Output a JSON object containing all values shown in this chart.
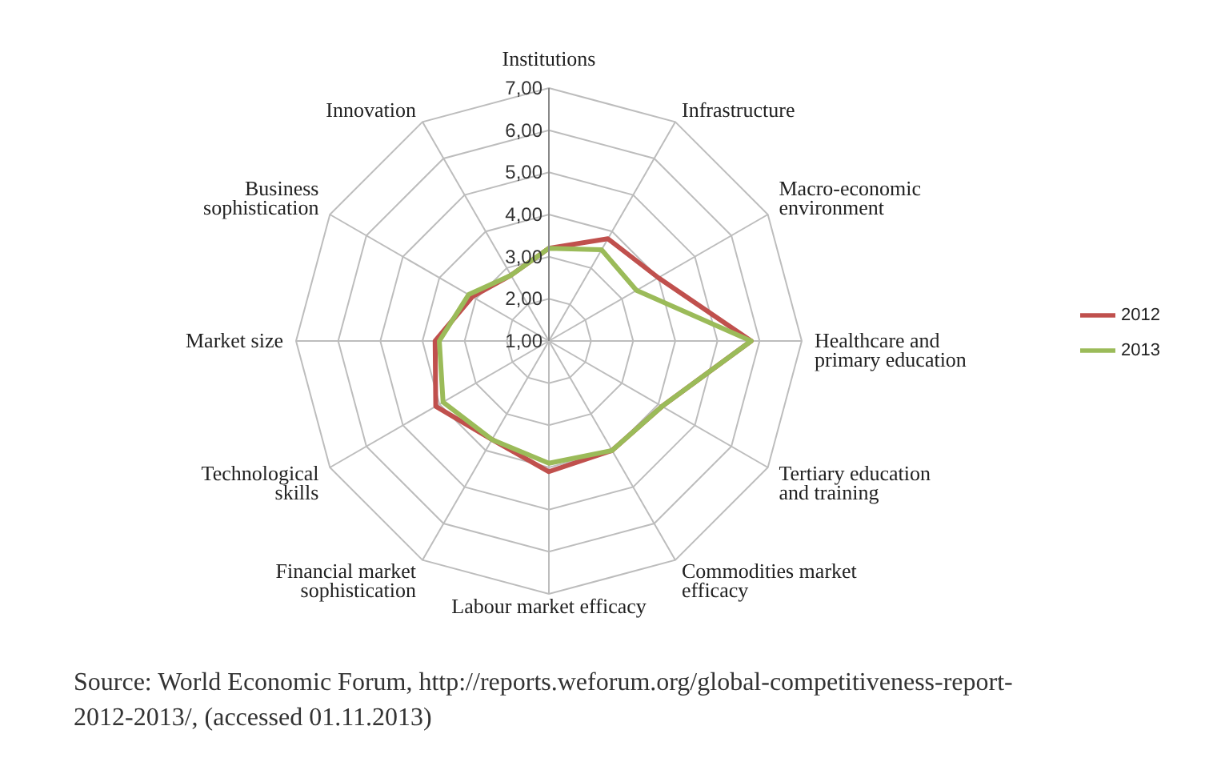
{
  "chart_data": {
    "type": "radar",
    "categories": [
      "Institutions",
      "Infrastructure",
      "Macro-economic environment",
      "Healthcare and primary education",
      "Tertiary education and training",
      "Commodities market efficacy",
      "Labour market efficacy",
      "Financial market sophistication",
      "Technological skills",
      "Market size",
      "Business sophistication",
      "Innovation"
    ],
    "series": [
      {
        "name": "2012",
        "color": "#c0504d",
        "values": [
          3.2,
          3.8,
          4.0,
          5.8,
          4.1,
          4.0,
          4.1,
          3.7,
          4.1,
          3.7,
          3.1,
          2.8
        ]
      },
      {
        "name": "2013",
        "color": "#9bbb59",
        "values": [
          3.2,
          3.5,
          3.4,
          5.8,
          4.1,
          4.0,
          3.9,
          3.7,
          3.9,
          3.6,
          3.2,
          2.8
        ]
      }
    ],
    "ylim": [
      1,
      7
    ],
    "yticks": [
      {
        "value": 1,
        "label": "1,00"
      },
      {
        "value": 2,
        "label": "2,00"
      },
      {
        "value": 3,
        "label": "3,00"
      },
      {
        "value": 4,
        "label": "4,00"
      },
      {
        "value": 5,
        "label": "5,00"
      },
      {
        "value": 6,
        "label": "6,00"
      },
      {
        "value": 7,
        "label": "7,00"
      }
    ],
    "grid": true,
    "legend": "right",
    "annotations": [
      "Source: World Economic Forum, http://reports.weforum.org/global-competitiveness-report-2012-2013/, (accessed 01.11.2013)"
    ]
  }
}
